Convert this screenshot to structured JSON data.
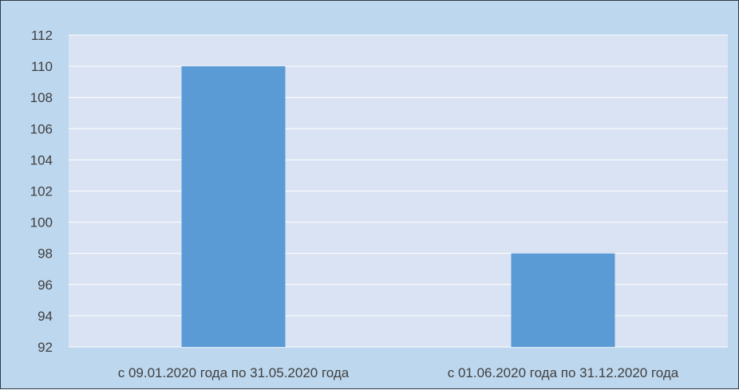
{
  "colors": {
    "chart_background": "#bdd7ee",
    "plot_background": "#dae3f3",
    "gridline": "#ffffff",
    "bar": "#5b9bd5",
    "text": "#404040"
  },
  "chart_data": {
    "type": "bar",
    "categories": [
      "с 09.01.2020 года по 31.05.2020 года",
      "с 01.06.2020 года по 31.12.2020 года"
    ],
    "values": [
      110,
      98
    ],
    "ylim": [
      92,
      112
    ],
    "yticks": [
      92,
      94,
      96,
      98,
      100,
      102,
      104,
      106,
      108,
      110,
      112
    ],
    "grid": true,
    "legend": "none"
  }
}
